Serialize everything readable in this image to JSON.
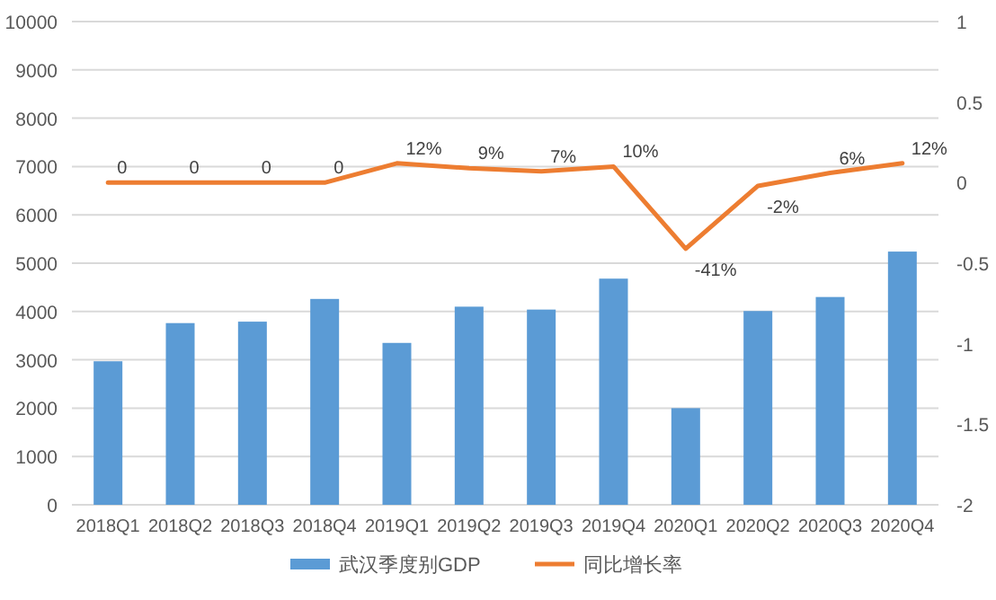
{
  "chart_data": {
    "type": "bar",
    "categories": [
      "2018Q1",
      "2018Q2",
      "2018Q3",
      "2018Q4",
      "2019Q1",
      "2019Q2",
      "2019Q3",
      "2019Q4",
      "2020Q1",
      "2020Q2",
      "2020Q3",
      "2020Q4"
    ],
    "series": [
      {
        "name": "武汉季度别GDP",
        "color": "#5b9bd5",
        "values": [
          2970,
          3760,
          3790,
          4260,
          3350,
          4100,
          4040,
          4680,
          2000,
          4010,
          4300,
          5240
        ]
      },
      {
        "name": "同比增长率",
        "type": "line",
        "axis": "y2",
        "color": "#ed7d31",
        "values": [
          0,
          0,
          0,
          0,
          0.12,
          0.09,
          0.07,
          0.1,
          -0.41,
          -0.02,
          0.06,
          0.12
        ],
        "value_labels": [
          "0",
          "0",
          "0",
          "0",
          "12%",
          "9%",
          "7%",
          "10%",
          "-41%",
          "-2%",
          "6%",
          "12%"
        ]
      }
    ],
    "ylim": [
      0,
      10000
    ],
    "yticks": [
      0,
      1000,
      2000,
      3000,
      4000,
      5000,
      6000,
      7000,
      8000,
      9000,
      10000
    ],
    "y2lim": [
      -2,
      1
    ],
    "y2ticks": [
      -2,
      -1.5,
      -1,
      -0.5,
      0,
      0.5,
      1
    ],
    "grid": "y",
    "legend": "bottom"
  }
}
